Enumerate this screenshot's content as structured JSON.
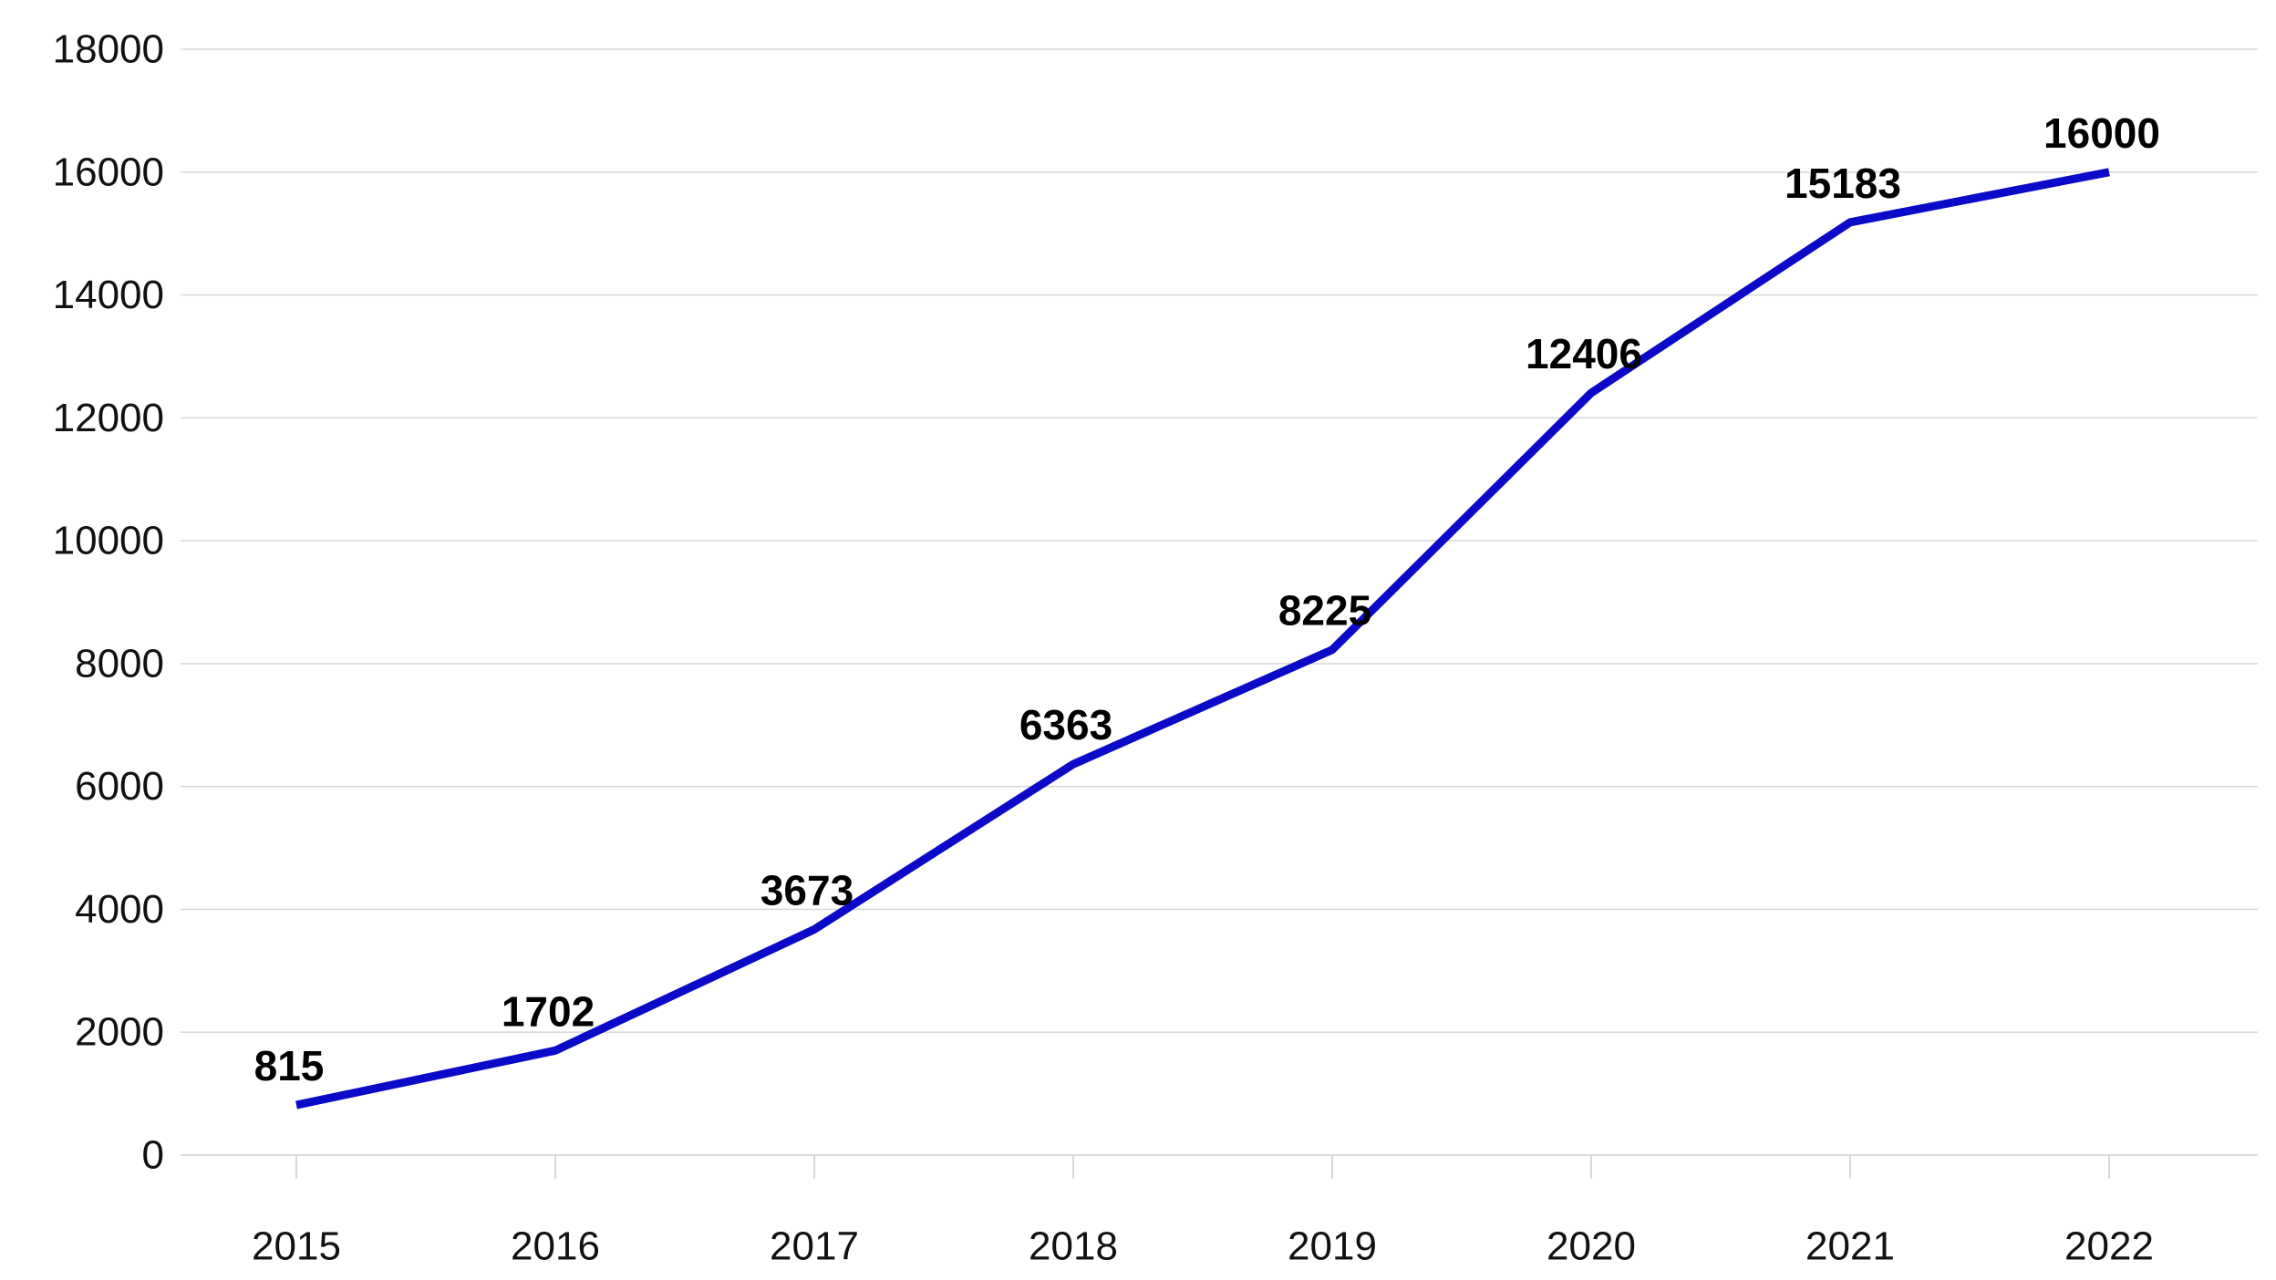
{
  "chart_data": {
    "type": "line",
    "title": "",
    "xlabel": "",
    "ylabel": "",
    "categories": [
      "2015",
      "2016",
      "2017",
      "2018",
      "2019",
      "2020",
      "2021",
      "2022"
    ],
    "series": [
      {
        "values": [
          815,
          1702,
          3673,
          6363,
          8225,
          12406,
          15183,
          16000
        ],
        "color": "#0a0ac8"
      }
    ],
    "data_labels": [
      "815",
      "1702",
      "3673",
      "6363",
      "8225",
      "12406",
      "15183",
      "16000"
    ],
    "y_ticks": [
      0,
      2000,
      4000,
      6000,
      8000,
      10000,
      12000,
      14000,
      16000,
      18000
    ],
    "y_tick_labels": [
      "0",
      "2000",
      "4000",
      "6000",
      "8000",
      "10000",
      "12000",
      "14000",
      "16000",
      "18000"
    ],
    "ylim": [
      0,
      18000
    ],
    "grid": true,
    "legend": "none"
  }
}
